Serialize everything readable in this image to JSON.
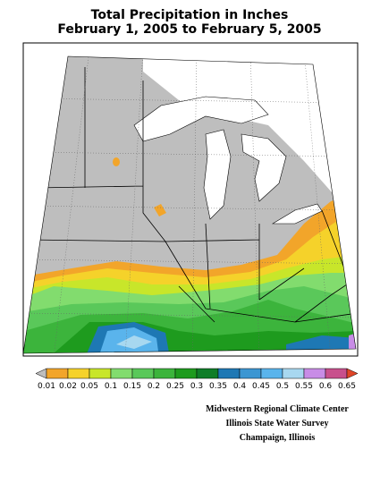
{
  "header": {
    "title": "Total Precipitation in Inches",
    "subtitle": "February 1, 2005 to February 5, 2005"
  },
  "legend": {
    "ticks": [
      0.01,
      0.02,
      0.05,
      0.1,
      0.15,
      0.2,
      0.25,
      0.3,
      0.35,
      0.4,
      0.45,
      0.5,
      0.55,
      0.6,
      0.65
    ],
    "colors": [
      "#bebebe",
      "#f2a52a",
      "#f5d22a",
      "#c8e62a",
      "#82dc6e",
      "#5ac85a",
      "#3cb43c",
      "#1e9b1e",
      "#0f7d28",
      "#1e78b4",
      "#3c96d2",
      "#5ab4ec",
      "#a8d8f0",
      "#c88ce6",
      "#c8508c",
      "#e04628"
    ]
  },
  "credits": [
    "Midwestern Regional Climate Center",
    "Illinois State Water Survey",
    "Champaign, Illinois"
  ]
}
